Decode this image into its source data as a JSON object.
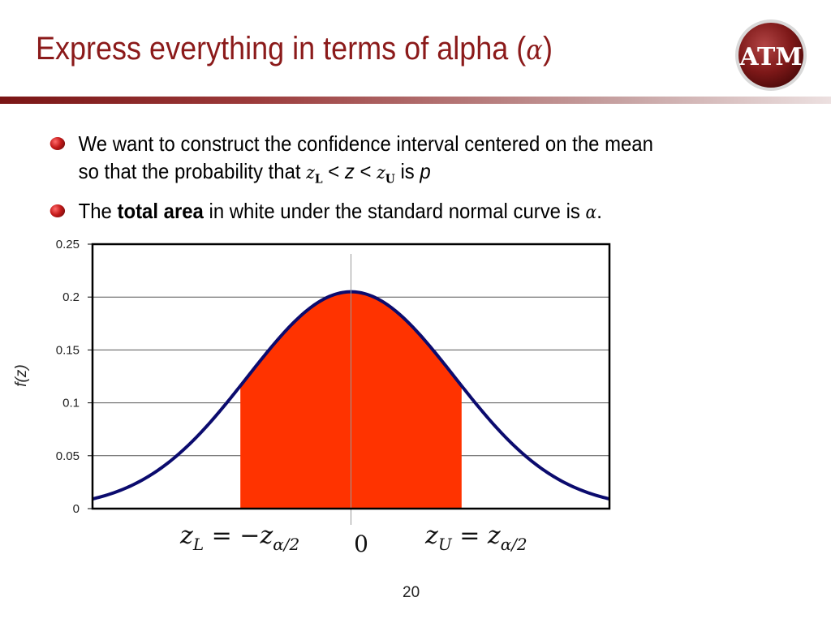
{
  "slide": {
    "title_text": "Express everything in terms of alpha (",
    "title_symbol": "α",
    "title_close": ")",
    "logo_text": "ATM",
    "page_number": "20"
  },
  "bullets": [
    {
      "line1": "We want to construct the confidence interval centered on the mean",
      "line2_prefix": "so that the probability that ",
      "zl": "z",
      "zl_sub": "L",
      "lt1": " < ",
      "zvar": "z",
      "lt2": " < ",
      "zu": "z",
      "zu_sub": "U",
      "is": "  is ",
      "p": "p"
    },
    {
      "prefix": "The ",
      "bold": "total area",
      "suffix": " in white under the standard normal curve is ",
      "symbol": "α",
      "end": "."
    }
  ],
  "colors": {
    "title": "#8b1a1a",
    "curve": "#0b0b6e",
    "fill": "#ff3300",
    "grid": "#555555"
  },
  "chart_data": {
    "type": "area",
    "ylabel": "f(z)",
    "ylim": [
      0,
      0.25
    ],
    "yticks": [
      "0",
      "0.05",
      "0.1",
      "0.15",
      "0.2",
      "0.25"
    ],
    "ytick_values": [
      0,
      0.05,
      0.1,
      0.15,
      0.2,
      0.25
    ],
    "grid": true,
    "xlim": [
      -4.86,
      4.86
    ],
    "curve": {
      "mean": 0,
      "std": 1.95,
      "peak": 0.205
    },
    "shaded_region": {
      "from": -2.08,
      "to": 2.08
    },
    "annotations": {
      "lower_label_main": "z",
      "lower_label_sub": "L",
      "lower_eq": " = −z",
      "lower_eq_sub": "α/2",
      "center_label": "0",
      "upper_label_main": "z",
      "upper_label_sub": "U",
      "upper_eq": " = z",
      "upper_eq_sub": "α/2"
    }
  }
}
